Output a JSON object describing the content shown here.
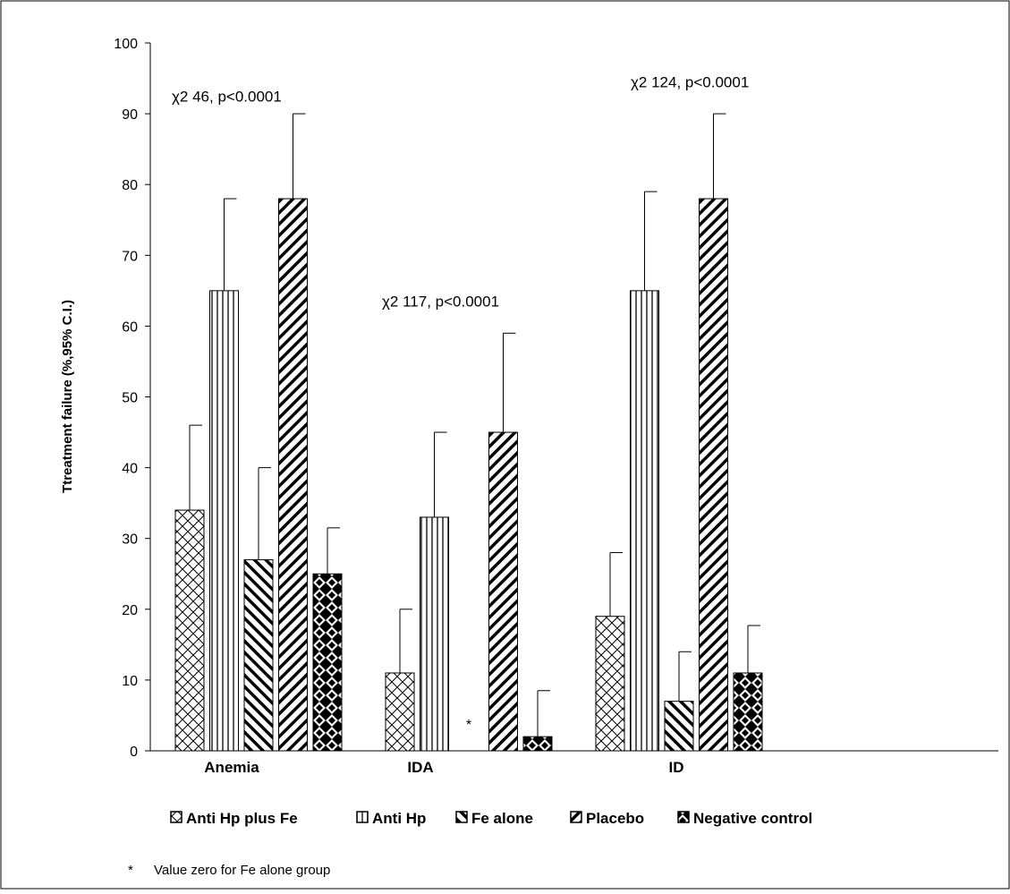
{
  "chart_data": {
    "type": "bar",
    "ylabel": "Ttreatment failure (%,95% C.I.)",
    "xlabel": "",
    "ylim": [
      0,
      100
    ],
    "yticks": [
      0,
      10,
      20,
      30,
      40,
      50,
      60,
      70,
      80,
      90,
      100
    ],
    "categories": [
      "Anemia",
      "IDA",
      "ID"
    ],
    "series": [
      {
        "name": "Anti Hp plus Fe",
        "pattern": "crosshatch",
        "values": [
          34,
          11,
          19
        ],
        "upper": [
          46,
          20,
          28
        ]
      },
      {
        "name": "Anti Hp",
        "pattern": "vertical",
        "values": [
          65,
          33,
          65
        ],
        "upper": [
          78,
          45,
          79
        ]
      },
      {
        "name": "Fe alone",
        "pattern": "diag-down",
        "values": [
          27,
          0,
          7
        ],
        "upper": [
          40,
          null,
          14
        ]
      },
      {
        "name": "Placebo",
        "pattern": "diag-up",
        "values": [
          78,
          45,
          78
        ],
        "upper": [
          90,
          59,
          90
        ]
      },
      {
        "name": "Negative control",
        "pattern": "diamond",
        "values": [
          25,
          2,
          11
        ],
        "upper": [
          31.5,
          8.5,
          17.7
        ]
      }
    ],
    "annotations": [
      {
        "text": "χ2 46, p<0.0001",
        "category": "Anemia",
        "y": 92.5
      },
      {
        "text": "χ2 117, p<0.0001",
        "category": "IDA",
        "y": 63.5
      },
      {
        "text": "χ2 124, p<0.0001",
        "category": "ID",
        "y": 94.5
      }
    ],
    "zero_marker": "*",
    "footnote": {
      "marker": "*",
      "text": "Value zero for Fe alone group"
    },
    "legend_position": "bottom",
    "grid": false,
    "colors": {
      "bar_fill": "#ffffff",
      "stroke": "#000000"
    }
  }
}
